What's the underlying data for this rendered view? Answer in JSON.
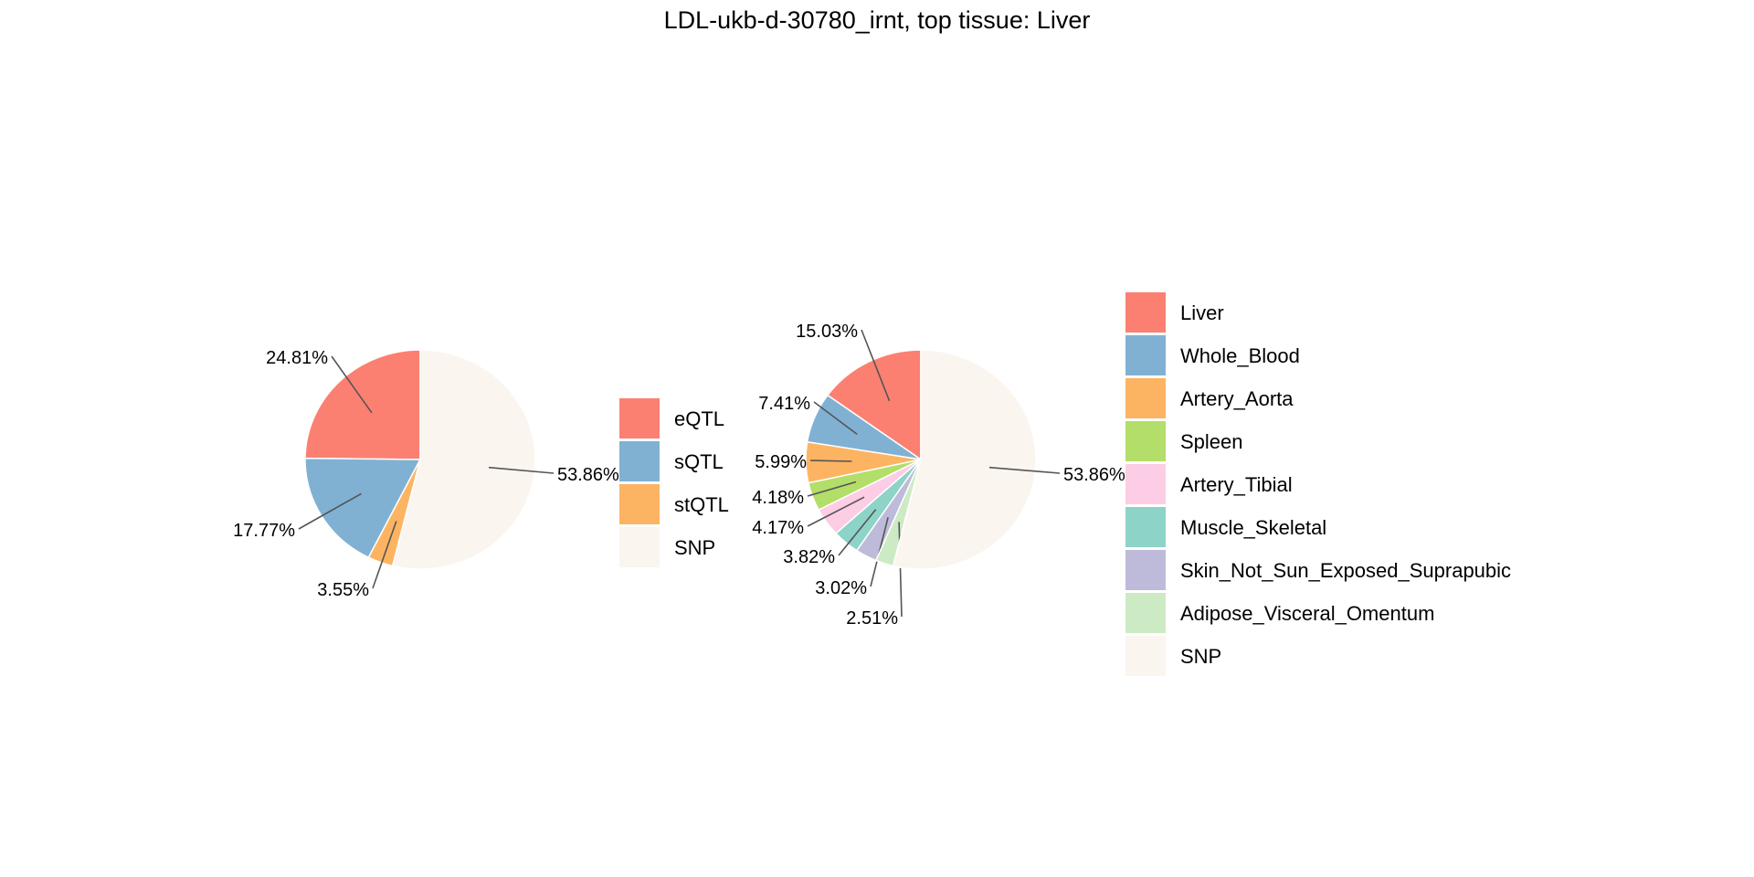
{
  "title": "LDL-ukb-d-30780_irnt, top tissue: Liver",
  "chart_data": [
    {
      "type": "pie",
      "slices": [
        {
          "name": "eQTL",
          "value": 24.81,
          "label": "24.81%",
          "color": "#FB8072"
        },
        {
          "name": "sQTL",
          "value": 17.77,
          "label": "17.77%",
          "color": "#80B1D3"
        },
        {
          "name": "stQTL",
          "value": 3.55,
          "label": "3.55%",
          "color": "#FDB462"
        },
        {
          "name": "SNP",
          "value": 53.86,
          "label": "53.86%",
          "color": "#FAF5EF"
        }
      ],
      "start_angle": "12 o'clock",
      "direction": "counterclockwise",
      "legend_placement": "right"
    },
    {
      "type": "pie",
      "slices": [
        {
          "name": "Liver",
          "value": 15.03,
          "label": "15.03%",
          "color": "#FB8072"
        },
        {
          "name": "Whole_Blood",
          "value": 7.41,
          "label": "7.41%",
          "color": "#80B1D3"
        },
        {
          "name": "Artery_Aorta",
          "value": 5.99,
          "label": "5.99%",
          "color": "#FDB462"
        },
        {
          "name": "Spleen",
          "value": 4.18,
          "label": "4.18%",
          "color": "#B3DE69"
        },
        {
          "name": "Artery_Tibial",
          "value": 4.17,
          "label": "4.17%",
          "color": "#FCCDE5"
        },
        {
          "name": "Muscle_Skeletal",
          "value": 3.82,
          "label": "3.82%",
          "color": "#8DD3C7"
        },
        {
          "name": "Skin_Not_Sun_Exposed_Suprapubic",
          "value": 3.02,
          "label": "3.02%",
          "color": "#BEBADA"
        },
        {
          "name": "Adipose_Visceral_Omentum",
          "value": 2.51,
          "label": "2.51%",
          "color": "#CCEBC5"
        },
        {
          "name": "SNP",
          "value": 53.86,
          "label": "53.86%",
          "color": "#FAF5EF"
        }
      ],
      "start_angle": "12 o'clock",
      "direction": "counterclockwise",
      "legend_placement": "right"
    }
  ]
}
